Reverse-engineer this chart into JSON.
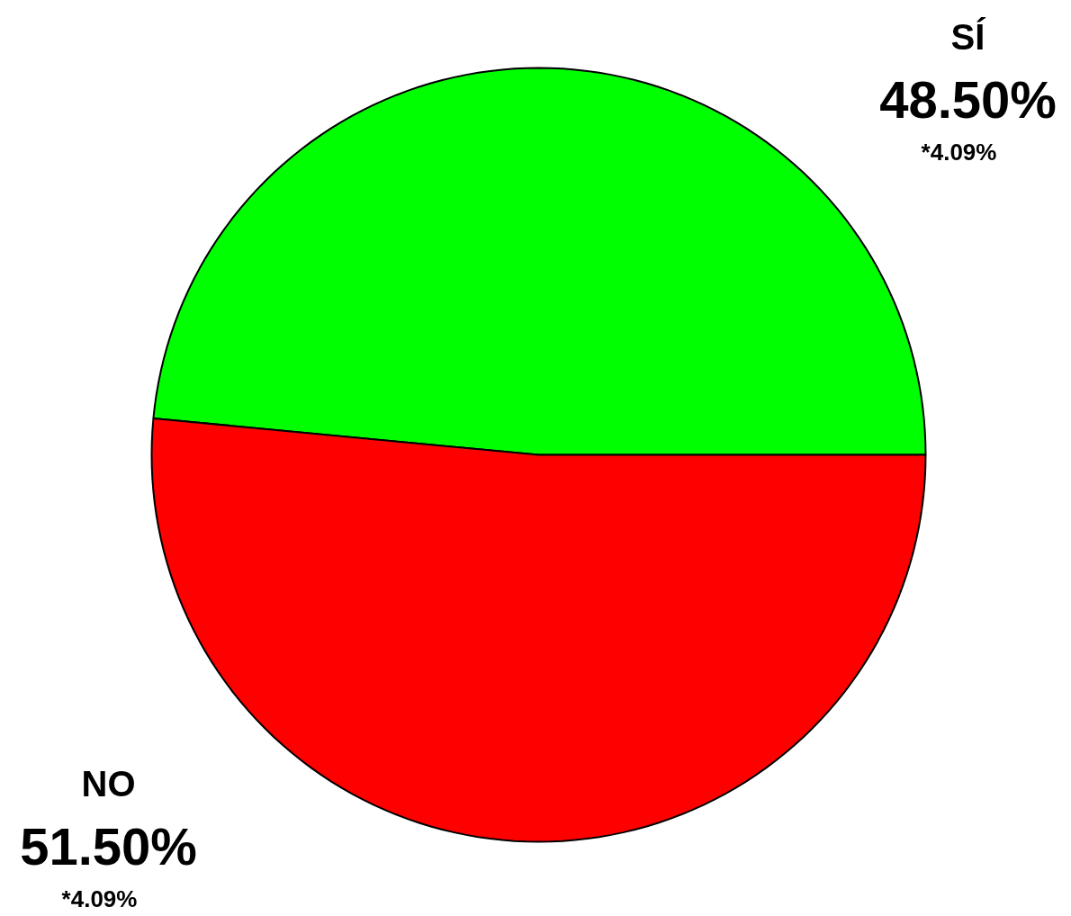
{
  "chart_data": {
    "type": "pie",
    "categories": [
      "SÍ",
      "NO"
    ],
    "values": [
      48.5,
      51.5
    ],
    "colors": [
      "#00ff00",
      "#ff0000"
    ],
    "value_labels": [
      "48.50%",
      "51.50%"
    ],
    "annotations": [
      "*4.09%",
      "*4.09%"
    ]
  }
}
